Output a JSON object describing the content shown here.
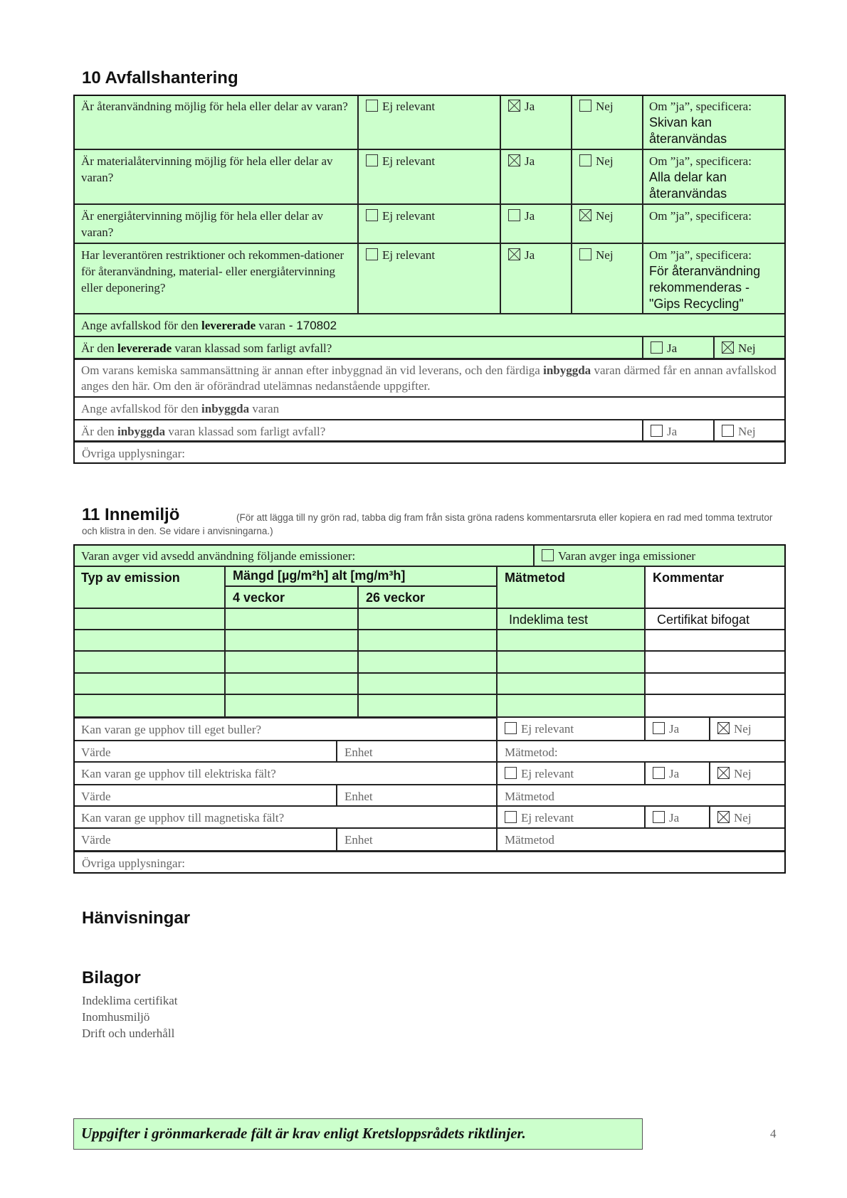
{
  "s10": {
    "title": "10  Avfallshantering",
    "questions": [
      {
        "q": "Är återanvändning möjlig för hela eller delar av varan?",
        "ej": false,
        "ja": true,
        "nej": false,
        "spec": "Skivan kan återanvändas"
      },
      {
        "q": "Är materialåtervinning möjlig för hela eller delar av varan?",
        "ej": false,
        "ja": true,
        "nej": false,
        "spec": "Alla delar kan återanvändas"
      },
      {
        "q": "Är energiåtervinning möjlig för hela eller delar av varan?",
        "ej": false,
        "ja": false,
        "nej": true,
        "spec": ""
      },
      {
        "q": "Har leverantören restriktioner och rekommen-dationer för återanvändning, material- eller energiåtervinning eller deponering?",
        "ej": false,
        "ja": true,
        "nej": false,
        "spec": "För återanvändning rekommenderas - \"Gips Recycling\""
      }
    ],
    "ej_label": "Ej relevant",
    "ja_label": "Ja",
    "nej_label": "Nej",
    "spec_label": "Om ”ja”, specificera:",
    "kod_pre": "Ange avfallskod för den ",
    "kod_bold": "levererade",
    "kod_post": " varan",
    "kod_value": " - 170802",
    "farl_pre": "Är den ",
    "farl_bold": "levererade",
    "farl_post": " varan klassad som farligt avfall?",
    "farl_ja": false,
    "farl_nej": true,
    "note_pre": "Om varans kemiska sammansättning är annan efter inbyggnad än vid leverans, och den färdiga ",
    "note_bold": "inbyggda",
    "note_post": " varan därmed får en annan avfallskod anges den här. Om den är oförändrad utelämnas nedanstående uppgifter.",
    "ikod_pre": "Ange avfallskod för den ",
    "ikod_bold": "inbyggda",
    "ikod_post": " varan",
    "ifarl_pre": "Är den ",
    "ifarl_bold": "inbyggda",
    "ifarl_post": " varan klassad som farligt avfall?",
    "ovriga": "Övriga upplysningar:"
  },
  "s11": {
    "title": "11  Innemiljö",
    "note": "(För att lägga till ny grön rad, tabba dig fram från sista gröna radens kommentarsruta eller kopiera en rad med tomma textrutor och klistra in den. Se vidare i anvisningarna.)",
    "emis_label": "Varan avger vid avsedd användning följande emissioner:",
    "inga_label": "Varan avger inga emissioner",
    "col_typ": "Typ av emission",
    "col_mangd": "Mängd [µg/m²h] alt [mg/m³h]",
    "col_4": "4 veckor",
    "col_26": "26 veckor",
    "col_mat": "Mätmetod",
    "col_kom": "Kommentar",
    "rows": [
      [
        "",
        "",
        "",
        "Indeklima test",
        "Certifikat bifogat"
      ],
      [
        "",
        "",
        "",
        "",
        ""
      ],
      [
        "",
        "",
        "",
        "",
        ""
      ],
      [
        "",
        "",
        "",
        "",
        ""
      ],
      [
        "",
        "",
        "",
        "",
        ""
      ]
    ],
    "checks": [
      {
        "q": "Kan varan ge upphov till eget buller?",
        "nej": true,
        "mat": "Mätmetod:"
      },
      {
        "q": "Kan varan ge upphov till elektriska fält?",
        "nej": true,
        "mat": "Mätmetod"
      },
      {
        "q": "Kan varan ge upphov till magnetiska fält?",
        "nej": true,
        "mat": "Mätmetod"
      }
    ],
    "varde": "Värde",
    "enhet": "Enhet",
    "ovriga": "Övriga upplysningar:"
  },
  "hanv": "Hänvisningar",
  "bilagor": {
    "title": "Bilagor",
    "items": [
      "Indeklima certifikat",
      "Inomhusmiljö",
      "Drift och underhåll"
    ]
  },
  "footer": {
    "text": "Uppgifter i grönmarkerade fält är krav enligt Kretsloppsrådets riktlinjer.",
    "page": "4"
  },
  "colors": {
    "green": "#ccffcc"
  }
}
